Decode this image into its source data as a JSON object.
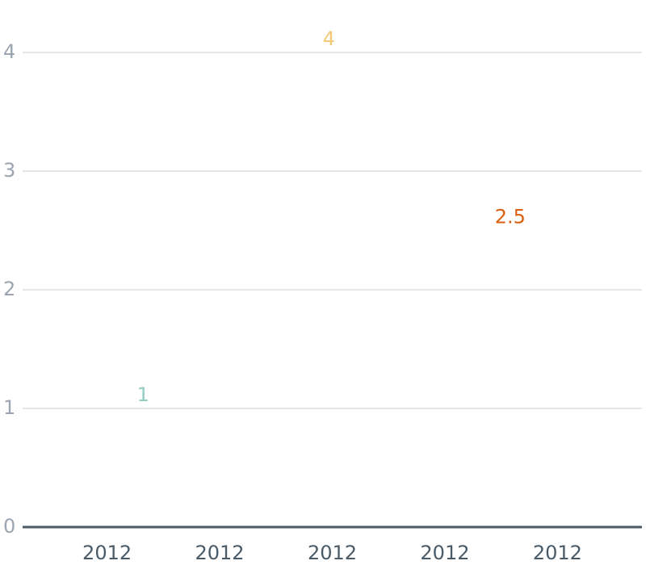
{
  "chart_data": {
    "type": "line",
    "title": "",
    "xlabel": "",
    "ylabel": "",
    "ylim": [
      0,
      4
    ],
    "y_ticks": [
      "0",
      "1",
      "2",
      "3",
      "4"
    ],
    "x_tick_labels": [
      "2012",
      "2012",
      "2012",
      "2012",
      "2012"
    ],
    "x_range": [
      0,
      5.5
    ],
    "x_tick_positions": [
      0.75,
      1.75,
      2.75,
      3.75,
      4.75
    ],
    "grid": true,
    "points": [
      {
        "x": 1.07,
        "y": 1.0,
        "label": "1",
        "color": "#8fcbc0"
      },
      {
        "x": 2.72,
        "y": 4.0,
        "label": "4",
        "color": "#f2c879"
      },
      {
        "x": 4.33,
        "y": 2.5,
        "label": "2.5",
        "color": "#d95f0e"
      }
    ]
  }
}
